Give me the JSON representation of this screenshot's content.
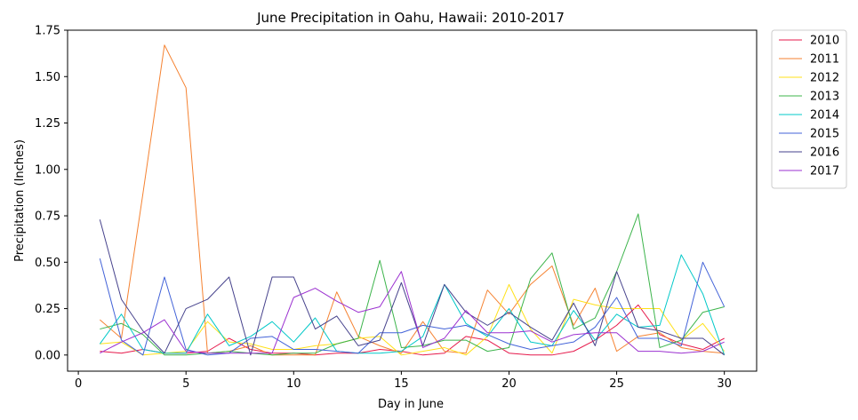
{
  "chart_data": {
    "type": "line",
    "title": "June Precipitation in Oahu, Hawaii: 2010-2017",
    "xlabel": "Day in June",
    "ylabel": "Precipitation (Inches)",
    "xlim": [
      -0.5,
      31.5
    ],
    "ylim": [
      -0.087,
      1.75
    ],
    "x_ticks": [
      0,
      5,
      10,
      15,
      20,
      25,
      30
    ],
    "x_tick_labels": [
      "0",
      "5",
      "10",
      "15",
      "20",
      "25",
      "30"
    ],
    "y_ticks": [
      0,
      0.25,
      0.5,
      0.75,
      1.0,
      1.25,
      1.5,
      1.75
    ],
    "y_tick_labels": [
      "0.00",
      "0.25",
      "0.50",
      "0.75",
      "1.00",
      "1.25",
      "1.50",
      "1.75"
    ],
    "grid": false,
    "legend_position": "outside-right-top",
    "x": [
      1,
      2,
      3,
      4,
      5,
      6,
      7,
      8,
      9,
      10,
      11,
      12,
      13,
      14,
      15,
      16,
      17,
      18,
      19,
      20,
      21,
      22,
      23,
      24,
      25,
      26,
      27,
      28,
      29,
      30
    ],
    "series": [
      {
        "name": "2010",
        "color": "#e6194b",
        "values": [
          0.02,
          0.01,
          0.03,
          0.01,
          0.01,
          0.02,
          0.09,
          0.03,
          0.01,
          0.01,
          0.0,
          0.01,
          0.01,
          0.03,
          0.02,
          0.0,
          0.01,
          0.1,
          0.08,
          0.01,
          0.0,
          0.0,
          0.02,
          0.08,
          0.16,
          0.27,
          0.11,
          0.06,
          0.03,
          0.09
        ]
      },
      {
        "name": "2011",
        "color": "#f58231",
        "values": [
          0.19,
          0.09,
          0.87,
          1.67,
          1.44,
          0.01,
          0.02,
          0.05,
          0.0,
          0.0,
          0.0,
          0.34,
          0.1,
          0.05,
          0.01,
          0.18,
          0.02,
          0.01,
          0.35,
          0.22,
          0.38,
          0.48,
          0.16,
          0.36,
          0.02,
          0.1,
          0.12,
          0.04,
          0.02,
          0.01
        ]
      },
      {
        "name": "2012",
        "color": "#ffe119",
        "values": [
          0.06,
          0.07,
          0.0,
          0.01,
          0.02,
          0.18,
          0.07,
          0.06,
          0.03,
          0.03,
          0.05,
          0.06,
          0.09,
          0.1,
          0.0,
          0.02,
          0.04,
          0.0,
          0.1,
          0.38,
          0.14,
          0.01,
          0.3,
          0.27,
          0.25,
          0.25,
          0.25,
          0.08,
          0.17,
          0.02
        ]
      },
      {
        "name": "2013",
        "color": "#3cb44b",
        "values": [
          0.14,
          0.17,
          0.11,
          0.0,
          0.0,
          0.01,
          0.02,
          0.01,
          0.0,
          0.01,
          0.01,
          0.06,
          0.09,
          0.51,
          0.04,
          0.05,
          0.08,
          0.08,
          0.02,
          0.04,
          0.41,
          0.55,
          0.14,
          0.2,
          0.45,
          0.76,
          0.04,
          0.08,
          0.23,
          0.26
        ]
      },
      {
        "name": "2014",
        "color": "#00c8c8",
        "values": [
          0.06,
          0.22,
          0.03,
          0.01,
          0.01,
          0.22,
          0.05,
          0.1,
          0.18,
          0.07,
          0.2,
          0.02,
          0.01,
          0.01,
          0.02,
          0.1,
          0.38,
          0.17,
          0.1,
          0.25,
          0.07,
          0.05,
          0.24,
          0.08,
          0.22,
          0.15,
          0.16,
          0.54,
          0.33,
          0.0
        ]
      },
      {
        "name": "2015",
        "color": "#4363d8",
        "values": [
          0.52,
          0.08,
          0.0,
          0.42,
          0.03,
          0.0,
          0.01,
          0.09,
          0.1,
          0.03,
          0.03,
          0.02,
          0.01,
          0.12,
          0.12,
          0.16,
          0.14,
          0.16,
          0.11,
          0.06,
          0.03,
          0.05,
          0.07,
          0.15,
          0.31,
          0.09,
          0.09,
          0.05,
          0.5,
          0.26
        ]
      },
      {
        "name": "2016",
        "color": "#46428c",
        "values": [
          0.73,
          0.3,
          0.13,
          0.01,
          0.25,
          0.3,
          0.42,
          0.0,
          0.42,
          0.42,
          0.14,
          0.21,
          0.05,
          0.08,
          0.39,
          0.05,
          0.38,
          0.23,
          0.16,
          0.23,
          0.15,
          0.08,
          0.28,
          0.05,
          0.45,
          0.15,
          0.13,
          0.09,
          0.09,
          0.0
        ]
      },
      {
        "name": "2017",
        "color": "#9b30d0",
        "values": [
          0.01,
          0.07,
          0.12,
          0.19,
          0.02,
          0.01,
          0.01,
          0.01,
          0.01,
          0.31,
          0.36,
          0.29,
          0.23,
          0.26,
          0.45,
          0.04,
          0.09,
          0.24,
          0.12,
          0.12,
          0.13,
          0.07,
          0.11,
          0.12,
          0.12,
          0.02,
          0.02,
          0.01,
          0.02,
          0.07
        ]
      }
    ]
  }
}
